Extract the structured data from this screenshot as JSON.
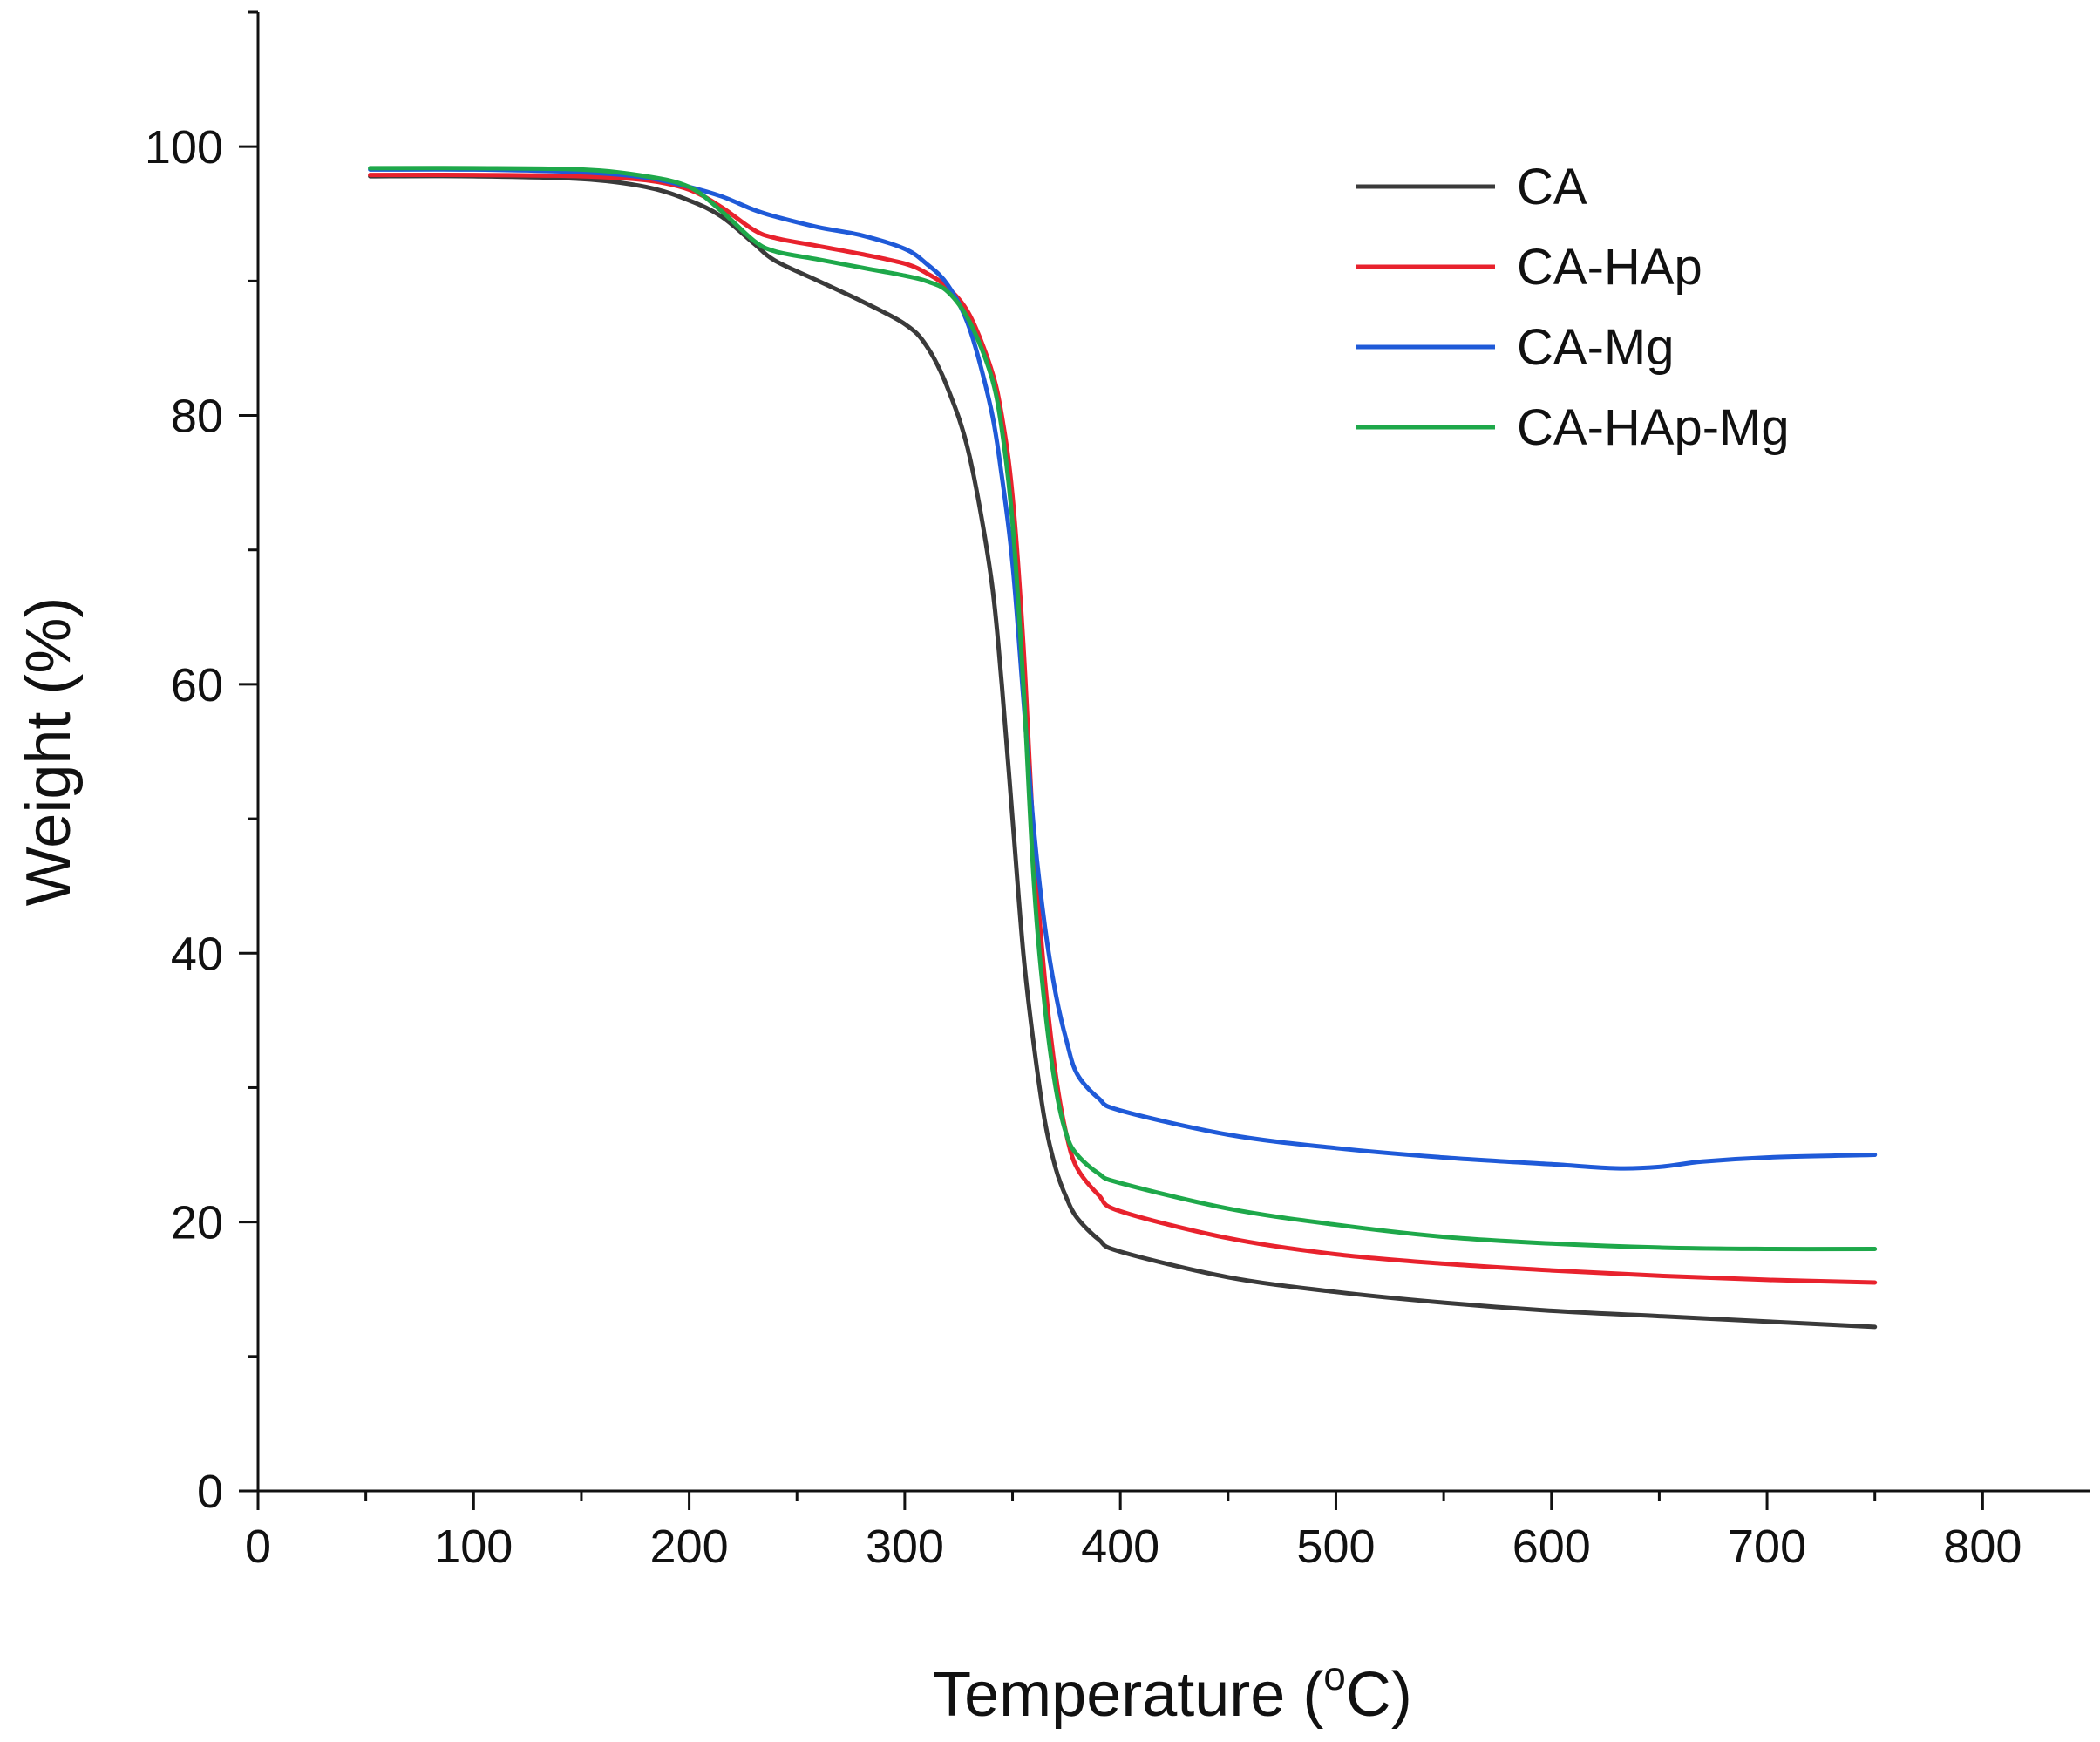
{
  "chart_data": {
    "type": "line",
    "title": "",
    "xlabel": "Temperature (",
    "xlabel_sup": "o",
    "xlabel_end": "C)",
    "ylabel": "Weight (%)",
    "xlim": [
      0,
      850
    ],
    "ylim": [
      0,
      110
    ],
    "xticks": [
      0,
      100,
      200,
      300,
      400,
      500,
      600,
      700,
      800
    ],
    "yticks": [
      0,
      20,
      40,
      60,
      80,
      100
    ],
    "x_tick_labels": [
      "0",
      "100",
      "200",
      "300",
      "400",
      "500",
      "600",
      "700",
      "800"
    ],
    "y_tick_labels": [
      "0",
      "20",
      "40",
      "60",
      "80",
      "100"
    ],
    "legend_position": "top-right",
    "series": [
      {
        "name": "CA",
        "color": "#3a3a3a",
        "x": [
          52,
          100,
          150,
          180,
          200,
          215,
          230,
          240,
          260,
          280,
          300,
          310,
          320,
          330,
          340,
          345,
          350,
          355,
          360,
          365,
          370,
          375,
          380,
          390,
          400,
          450,
          500,
          550,
          600,
          650,
          700,
          750
        ],
        "y": [
          97.8,
          97.8,
          97.6,
          97.0,
          96.0,
          94.8,
          92.8,
          91.5,
          90.0,
          88.5,
          86.8,
          85.2,
          82.0,
          77.0,
          68.0,
          60.0,
          50.0,
          40.0,
          33.0,
          27.5,
          24.0,
          21.8,
          20.3,
          18.7,
          17.8,
          15.9,
          14.8,
          14.0,
          13.4,
          13.0,
          12.6,
          12.2
        ]
      },
      {
        "name": "CA-HAp",
        "color": "#e8222d",
        "x": [
          52,
          100,
          150,
          180,
          200,
          215,
          230,
          240,
          260,
          280,
          300,
          310,
          320,
          330,
          340,
          345,
          350,
          355,
          360,
          365,
          370,
          375,
          380,
          390,
          400,
          450,
          500,
          550,
          600,
          650,
          700,
          750
        ],
        "y": [
          97.9,
          97.9,
          97.8,
          97.5,
          96.8,
          95.5,
          93.8,
          93.2,
          92.6,
          92.0,
          91.3,
          90.6,
          89.5,
          87.5,
          83.5,
          80.0,
          74.0,
          63.0,
          48.0,
          38.0,
          31.0,
          26.5,
          24.0,
          22.0,
          20.8,
          18.8,
          17.6,
          16.9,
          16.4,
          16.0,
          15.7,
          15.5
        ]
      },
      {
        "name": "CA-Mg",
        "color": "#1f5ad8",
        "x": [
          52,
          100,
          150,
          180,
          200,
          215,
          230,
          240,
          260,
          280,
          300,
          310,
          320,
          330,
          340,
          345,
          350,
          355,
          360,
          365,
          370,
          375,
          380,
          390,
          400,
          450,
          500,
          550,
          600,
          630,
          650,
          670,
          700,
          750
        ],
        "y": [
          98.3,
          98.3,
          98.1,
          97.7,
          97.0,
          96.3,
          95.3,
          94.8,
          94.0,
          93.4,
          92.4,
          91.3,
          89.7,
          86.5,
          80.5,
          75.5,
          69.0,
          59.0,
          49.0,
          42.0,
          37.0,
          33.5,
          31.0,
          29.2,
          28.3,
          26.5,
          25.5,
          24.8,
          24.3,
          24.0,
          24.1,
          24.5,
          24.8,
          25.0
        ]
      },
      {
        "name": "CA-HAp-Mg",
        "color": "#1ea84a",
        "x": [
          52,
          100,
          150,
          180,
          200,
          215,
          230,
          240,
          260,
          280,
          300,
          310,
          320,
          330,
          340,
          345,
          350,
          355,
          360,
          365,
          370,
          375,
          380,
          390,
          400,
          450,
          500,
          550,
          600,
          650,
          700,
          750
        ],
        "y": [
          98.4,
          98.4,
          98.3,
          97.8,
          97.0,
          95.2,
          93.0,
          92.2,
          91.6,
          91.0,
          90.4,
          90.0,
          89.2,
          87.0,
          83.0,
          79.0,
          72.0,
          60.0,
          45.0,
          36.0,
          30.0,
          26.5,
          25.0,
          23.6,
          22.9,
          21.0,
          19.8,
          18.9,
          18.4,
          18.1,
          18.0,
          18.0
        ]
      }
    ]
  }
}
